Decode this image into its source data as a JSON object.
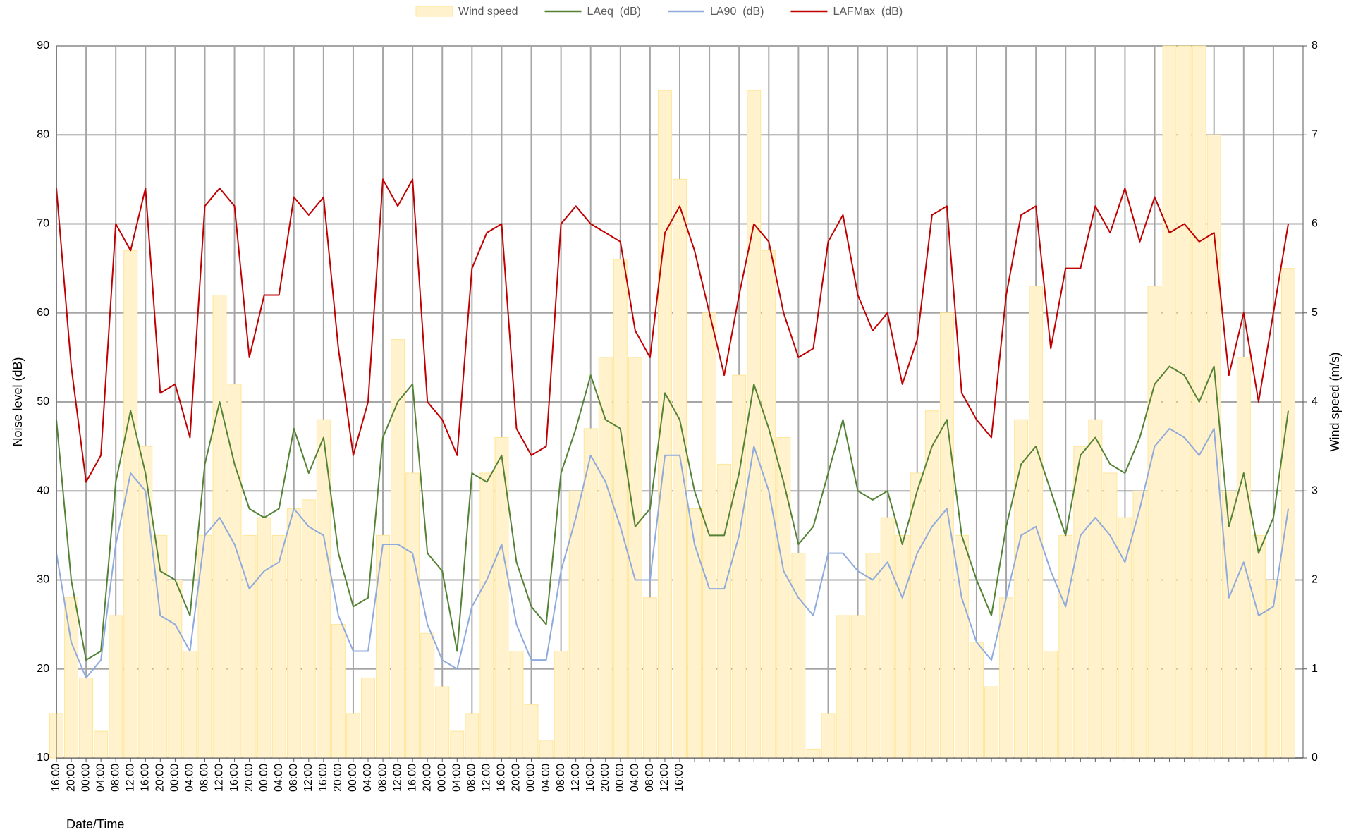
{
  "chart_data": {
    "type": "bar_line",
    "x_label": "Date/Time",
    "y_label": "Noise level (dB)",
    "y2_label": "Wind speed (m/s)",
    "categories": [
      "16:00",
      "20:00",
      "00:00",
      "04:00",
      "08:00",
      "12:00",
      "16:00",
      "20:00",
      "00:00",
      "04:00",
      "08:00",
      "12:00",
      "16:00",
      "20:00",
      "00:00",
      "04:00",
      "08:00",
      "12:00",
      "16:00",
      "20:00",
      "00:00",
      "04:00",
      "08:00",
      "12:00",
      "16:00",
      "20:00",
      "00:00",
      "04:00",
      "08:00",
      "12:00",
      "16:00",
      "20:00",
      "00:00",
      "04:00",
      "08:00",
      "12:00",
      "16:00",
      "20:00",
      "00:00",
      "04:00",
      "08:00",
      "12:00",
      "16:00",
      null,
      null,
      null,
      null,
      null,
      null,
      null,
      null,
      null,
      null,
      null,
      null,
      null,
      null,
      null,
      null,
      null,
      null,
      null,
      null,
      null,
      null,
      null,
      null,
      null,
      null,
      null,
      null,
      null,
      null,
      null,
      null,
      null,
      null,
      null,
      null,
      null,
      null,
      null,
      null,
      null
    ],
    "series": [
      {
        "name": "Wind speed",
        "type": "bar",
        "axis": "y2",
        "color": "#ffe699",
        "values": [
          0.5,
          1.8,
          0.9,
          0.3,
          1.6,
          5.7,
          3.5,
          2.5,
          2.0,
          1.2,
          2.5,
          5.2,
          4.2,
          2.5,
          2.7,
          2.5,
          2.8,
          2.9,
          3.8,
          1.5,
          0.5,
          0.9,
          2.5,
          4.7,
          3.2,
          1.4,
          0.8,
          0.3,
          0.5,
          3.2,
          3.6,
          1.2,
          0.6,
          0.2,
          1.2,
          3.0,
          3.7,
          4.5,
          5.6,
          4.5,
          1.8,
          7.5,
          6.5,
          2.8,
          5.0,
          3.3,
          4.3,
          7.5,
          5.7,
          3.6,
          2.3,
          0.1,
          0.5,
          1.6,
          1.6,
          2.3,
          2.7,
          2.5,
          3.2,
          3.9,
          5.0,
          2.5,
          1.3,
          0.8,
          1.8,
          3.8,
          5.3,
          1.2,
          2.5,
          3.5,
          3.8,
          3.2,
          2.7,
          3.0,
          5.3,
          8.0,
          8.0,
          8.0,
          7.0,
          3.0,
          4.5,
          2.5,
          2.0,
          5.5
        ]
      },
      {
        "name": "LAeq  (dB)",
        "type": "line",
        "color": "#548235",
        "values": [
          48,
          30,
          21,
          22,
          41,
          49,
          42,
          31,
          30,
          26,
          43,
          50,
          43,
          38,
          37,
          38,
          47,
          42,
          46,
          33,
          27,
          28,
          46,
          50,
          52,
          33,
          31,
          22,
          42,
          41,
          44,
          32,
          27,
          25,
          42,
          47,
          53,
          48,
          47,
          36,
          38,
          51,
          48,
          40,
          35,
          35,
          42,
          52,
          47,
          41,
          34,
          36,
          42,
          48,
          40,
          39,
          40,
          34,
          40,
          45,
          48,
          35,
          30,
          26,
          36,
          43,
          45,
          40,
          35,
          44,
          46,
          43,
          42,
          46,
          52,
          54,
          53,
          50,
          54,
          36,
          42,
          33,
          37,
          49
        ]
      },
      {
        "name": "LA90  (dB)",
        "type": "line",
        "color": "#8faadc",
        "values": [
          33,
          23,
          19,
          21,
          34,
          42,
          40,
          26,
          25,
          22,
          35,
          37,
          34,
          29,
          31,
          32,
          38,
          36,
          35,
          26,
          22,
          22,
          34,
          34,
          33,
          25,
          21,
          20,
          27,
          30,
          34,
          25,
          21,
          21,
          31,
          37,
          44,
          41,
          36,
          30,
          30,
          44,
          44,
          34,
          29,
          29,
          35,
          45,
          40,
          31,
          28,
          26,
          33,
          33,
          31,
          30,
          32,
          28,
          33,
          36,
          38,
          28,
          23,
          21,
          28,
          35,
          36,
          31,
          27,
          35,
          37,
          35,
          32,
          38,
          45,
          47,
          46,
          44,
          47,
          28,
          32,
          26,
          27,
          38
        ]
      },
      {
        "name": "LAFMax  (dB)",
        "type": "line",
        "color": "#c00000",
        "values": [
          74,
          54,
          41,
          44,
          70,
          67,
          74,
          51,
          52,
          46,
          72,
          74,
          72,
          55,
          62,
          62,
          73,
          71,
          73,
          56,
          44,
          50,
          75,
          72,
          75,
          50,
          48,
          44,
          65,
          69,
          70,
          47,
          44,
          45,
          70,
          72,
          70,
          69,
          68,
          58,
          55,
          69,
          72,
          67,
          60,
          53,
          62,
          70,
          68,
          60,
          55,
          56,
          68,
          71,
          62,
          58,
          60,
          52,
          57,
          71,
          72,
          51,
          48,
          46,
          62,
          71,
          72,
          56,
          65,
          65,
          72,
          69,
          74,
          68,
          73,
          69,
          70,
          68,
          69,
          53,
          60,
          50,
          60,
          70
        ]
      }
    ],
    "ylim": [
      10,
      90
    ],
    "yticks": [
      10,
      20,
      30,
      40,
      50,
      60,
      70,
      80,
      90
    ],
    "y2lim": [
      0,
      8
    ],
    "y2ticks": [
      0,
      1,
      2,
      3,
      4,
      5,
      6,
      7,
      8
    ],
    "grid": true,
    "legend": "top"
  }
}
